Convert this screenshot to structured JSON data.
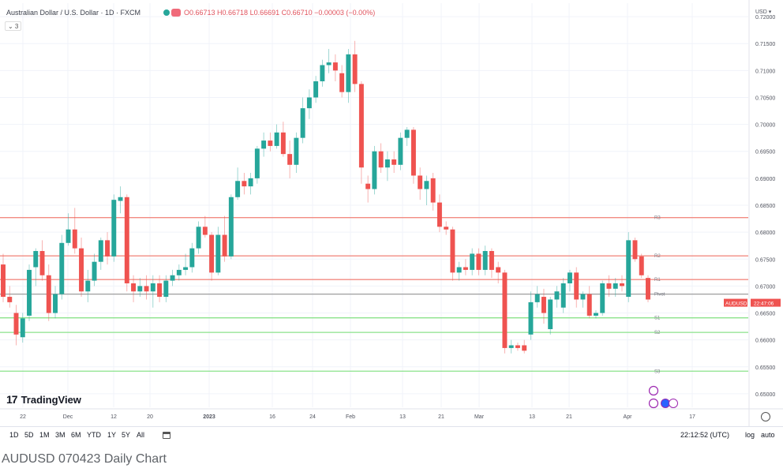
{
  "header": {
    "symbol_title": "Australian Dollar / U.S. Dollar · 1D · FXCM",
    "ohlc_text": "O0.66713  H0.66718  L0.66691  C0.66710  −0.00003 (−0.00%)",
    "indicator_count": "⌄ 3"
  },
  "axis": {
    "currency": "USD ▾",
    "price_labels": [
      "0.72000",
      "0.71500",
      "0.71000",
      "0.70500",
      "0.70000",
      "0.69500",
      "0.69000",
      "0.68500",
      "0.68000",
      "0.67500",
      "0.67000",
      "0.66500",
      "0.66000",
      "0.65500",
      "0.65000"
    ],
    "date_labels": [
      "22",
      "Dec",
      "12",
      "20",
      "2023",
      "16",
      "24",
      "Feb",
      "13",
      "21",
      "Mar",
      "13",
      "21",
      "Apr",
      "17"
    ]
  },
  "price_tag": {
    "symbol": "AUDUSD",
    "time": "22:47:06"
  },
  "pivots": [
    {
      "label": "R3",
      "value": 0.6827,
      "color": "#f28b82"
    },
    {
      "label": "R2",
      "value": 0.6756,
      "color": "#f28b82"
    },
    {
      "label": "R1",
      "value": 0.6712,
      "color": "#f28b82"
    },
    {
      "label": "Pivot",
      "value": 0.6685,
      "color": "#9e9e9e"
    },
    {
      "label": "S1",
      "value": 0.6641,
      "color": "#8be28b"
    },
    {
      "label": "S2",
      "value": 0.6614,
      "color": "#8be28b"
    },
    {
      "label": "S3",
      "value": 0.6542,
      "color": "#8be28b"
    }
  ],
  "branding": {
    "logo_mark": "17",
    "logo_text": "TradingView"
  },
  "toolbar": {
    "timeframes": [
      "1D",
      "5D",
      "1M",
      "3M",
      "6M",
      "YTD",
      "1Y",
      "5Y",
      "All"
    ],
    "time_readout": "22:12:52 (UTC)",
    "log_label": "log",
    "auto_label": "auto"
  },
  "caption": "AUDUSD 070423 Daily Chart",
  "colors": {
    "up": "#26a69a",
    "down": "#ef5350",
    "grid": "#f0f3fa"
  },
  "chart_data": {
    "type": "candlestick",
    "title": "Australian Dollar / U.S. Dollar · 1D · FXCM",
    "ylim": [
      0.6475,
      0.7225
    ],
    "candles": [
      {
        "o": 0.674,
        "h": 0.676,
        "l": 0.667,
        "c": 0.668
      },
      {
        "o": 0.668,
        "h": 0.67,
        "l": 0.666,
        "c": 0.667
      },
      {
        "o": 0.665,
        "h": 0.6665,
        "l": 0.659,
        "c": 0.661
      },
      {
        "o": 0.6605,
        "h": 0.665,
        "l": 0.6595,
        "c": 0.664
      },
      {
        "o": 0.6645,
        "h": 0.674,
        "l": 0.6635,
        "c": 0.673
      },
      {
        "o": 0.6735,
        "h": 0.677,
        "l": 0.67,
        "c": 0.6765
      },
      {
        "o": 0.6765,
        "h": 0.6785,
        "l": 0.671,
        "c": 0.672
      },
      {
        "o": 0.672,
        "h": 0.674,
        "l": 0.6635,
        "c": 0.665
      },
      {
        "o": 0.665,
        "h": 0.67,
        "l": 0.664,
        "c": 0.6685
      },
      {
        "o": 0.6685,
        "h": 0.6795,
        "l": 0.6675,
        "c": 0.678
      },
      {
        "o": 0.678,
        "h": 0.6835,
        "l": 0.6775,
        "c": 0.6805
      },
      {
        "o": 0.6805,
        "h": 0.6845,
        "l": 0.676,
        "c": 0.677
      },
      {
        "o": 0.677,
        "h": 0.679,
        "l": 0.668,
        "c": 0.669
      },
      {
        "o": 0.669,
        "h": 0.673,
        "l": 0.667,
        "c": 0.671
      },
      {
        "o": 0.671,
        "h": 0.676,
        "l": 0.67,
        "c": 0.6745
      },
      {
        "o": 0.6745,
        "h": 0.679,
        "l": 0.673,
        "c": 0.6785
      },
      {
        "o": 0.6785,
        "h": 0.68,
        "l": 0.674,
        "c": 0.6755
      },
      {
        "o": 0.6755,
        "h": 0.687,
        "l": 0.6745,
        "c": 0.686
      },
      {
        "o": 0.6858,
        "h": 0.6885,
        "l": 0.6835,
        "c": 0.6865
      },
      {
        "o": 0.6865,
        "h": 0.687,
        "l": 0.669,
        "c": 0.6705
      },
      {
        "o": 0.6705,
        "h": 0.672,
        "l": 0.667,
        "c": 0.669
      },
      {
        "o": 0.669,
        "h": 0.6715,
        "l": 0.668,
        "c": 0.67
      },
      {
        "o": 0.67,
        "h": 0.672,
        "l": 0.6675,
        "c": 0.669
      },
      {
        "o": 0.669,
        "h": 0.672,
        "l": 0.666,
        "c": 0.6705
      },
      {
        "o": 0.6705,
        "h": 0.672,
        "l": 0.667,
        "c": 0.668
      },
      {
        "o": 0.668,
        "h": 0.672,
        "l": 0.667,
        "c": 0.671
      },
      {
        "o": 0.671,
        "h": 0.673,
        "l": 0.67,
        "c": 0.672
      },
      {
        "o": 0.672,
        "h": 0.674,
        "l": 0.671,
        "c": 0.673
      },
      {
        "o": 0.673,
        "h": 0.676,
        "l": 0.672,
        "c": 0.6735
      },
      {
        "o": 0.6735,
        "h": 0.678,
        "l": 0.6725,
        "c": 0.677
      },
      {
        "o": 0.677,
        "h": 0.682,
        "l": 0.676,
        "c": 0.681
      },
      {
        "o": 0.681,
        "h": 0.683,
        "l": 0.679,
        "c": 0.6795
      },
      {
        "o": 0.6795,
        "h": 0.68,
        "l": 0.671,
        "c": 0.6725
      },
      {
        "o": 0.6725,
        "h": 0.681,
        "l": 0.672,
        "c": 0.6795
      },
      {
        "o": 0.6795,
        "h": 0.683,
        "l": 0.6745,
        "c": 0.6755
      },
      {
        "o": 0.6755,
        "h": 0.687,
        "l": 0.675,
        "c": 0.6865
      },
      {
        "o": 0.6865,
        "h": 0.692,
        "l": 0.686,
        "c": 0.6895
      },
      {
        "o": 0.6895,
        "h": 0.691,
        "l": 0.687,
        "c": 0.6885
      },
      {
        "o": 0.6885,
        "h": 0.691,
        "l": 0.687,
        "c": 0.69
      },
      {
        "o": 0.69,
        "h": 0.696,
        "l": 0.689,
        "c": 0.6955
      },
      {
        "o": 0.6955,
        "h": 0.6985,
        "l": 0.694,
        "c": 0.697
      },
      {
        "o": 0.697,
        "h": 0.6985,
        "l": 0.695,
        "c": 0.696
      },
      {
        "o": 0.696,
        "h": 0.7,
        "l": 0.6955,
        "c": 0.6985
      },
      {
        "o": 0.6985,
        "h": 0.7005,
        "l": 0.694,
        "c": 0.6945
      },
      {
        "o": 0.6945,
        "h": 0.697,
        "l": 0.69,
        "c": 0.6925
      },
      {
        "o": 0.6925,
        "h": 0.6985,
        "l": 0.691,
        "c": 0.6975
      },
      {
        "o": 0.6975,
        "h": 0.705,
        "l": 0.6965,
        "c": 0.703
      },
      {
        "o": 0.703,
        "h": 0.7065,
        "l": 0.701,
        "c": 0.705
      },
      {
        "o": 0.705,
        "h": 0.709,
        "l": 0.704,
        "c": 0.708
      },
      {
        "o": 0.708,
        "h": 0.712,
        "l": 0.707,
        "c": 0.711
      },
      {
        "o": 0.711,
        "h": 0.714,
        "l": 0.7095,
        "c": 0.7115
      },
      {
        "o": 0.7115,
        "h": 0.713,
        "l": 0.708,
        "c": 0.71
      },
      {
        "o": 0.7095,
        "h": 0.711,
        "l": 0.705,
        "c": 0.706
      },
      {
        "o": 0.706,
        "h": 0.714,
        "l": 0.704,
        "c": 0.713
      },
      {
        "o": 0.713,
        "h": 0.7155,
        "l": 0.706,
        "c": 0.7075
      },
      {
        "o": 0.7075,
        "h": 0.708,
        "l": 0.689,
        "c": 0.692
      },
      {
        "o": 0.689,
        "h": 0.6905,
        "l": 0.6855,
        "c": 0.688
      },
      {
        "o": 0.688,
        "h": 0.696,
        "l": 0.687,
        "c": 0.695
      },
      {
        "o": 0.695,
        "h": 0.6965,
        "l": 0.691,
        "c": 0.692
      },
      {
        "o": 0.692,
        "h": 0.695,
        "l": 0.6895,
        "c": 0.6935
      },
      {
        "o": 0.6935,
        "h": 0.695,
        "l": 0.691,
        "c": 0.6925
      },
      {
        "o": 0.6925,
        "h": 0.6985,
        "l": 0.6915,
        "c": 0.6975
      },
      {
        "o": 0.6975,
        "h": 0.6995,
        "l": 0.696,
        "c": 0.699
      },
      {
        "o": 0.699,
        "h": 0.6995,
        "l": 0.689,
        "c": 0.6905
      },
      {
        "o": 0.6905,
        "h": 0.692,
        "l": 0.686,
        "c": 0.688
      },
      {
        "o": 0.688,
        "h": 0.6905,
        "l": 0.685,
        "c": 0.6895
      },
      {
        "o": 0.69,
        "h": 0.691,
        "l": 0.684,
        "c": 0.6855
      },
      {
        "o": 0.6855,
        "h": 0.687,
        "l": 0.68,
        "c": 0.681
      },
      {
        "o": 0.681,
        "h": 0.682,
        "l": 0.6795,
        "c": 0.6805
      },
      {
        "o": 0.6805,
        "h": 0.681,
        "l": 0.671,
        "c": 0.6725
      },
      {
        "o": 0.6725,
        "h": 0.6745,
        "l": 0.671,
        "c": 0.6735
      },
      {
        "o": 0.6735,
        "h": 0.675,
        "l": 0.672,
        "c": 0.673
      },
      {
        "o": 0.673,
        "h": 0.677,
        "l": 0.672,
        "c": 0.676
      },
      {
        "o": 0.676,
        "h": 0.677,
        "l": 0.672,
        "c": 0.673
      },
      {
        "o": 0.673,
        "h": 0.6775,
        "l": 0.672,
        "c": 0.6765
      },
      {
        "o": 0.6765,
        "h": 0.677,
        "l": 0.6715,
        "c": 0.673
      },
      {
        "o": 0.6735,
        "h": 0.6745,
        "l": 0.6705,
        "c": 0.6725
      },
      {
        "o": 0.6725,
        "h": 0.673,
        "l": 0.6575,
        "c": 0.6585
      },
      {
        "o": 0.6585,
        "h": 0.66,
        "l": 0.6575,
        "c": 0.659
      },
      {
        "o": 0.659,
        "h": 0.6595,
        "l": 0.658,
        "c": 0.6585
      },
      {
        "o": 0.659,
        "h": 0.66,
        "l": 0.6575,
        "c": 0.658
      },
      {
        "o": 0.661,
        "h": 0.669,
        "l": 0.66,
        "c": 0.667
      },
      {
        "o": 0.667,
        "h": 0.67,
        "l": 0.666,
        "c": 0.6685
      },
      {
        "o": 0.668,
        "h": 0.6695,
        "l": 0.663,
        "c": 0.665
      },
      {
        "o": 0.662,
        "h": 0.668,
        "l": 0.661,
        "c": 0.6675
      },
      {
        "o": 0.6675,
        "h": 0.67,
        "l": 0.666,
        "c": 0.669
      },
      {
        "o": 0.666,
        "h": 0.6715,
        "l": 0.665,
        "c": 0.6705
      },
      {
        "o": 0.6705,
        "h": 0.673,
        "l": 0.669,
        "c": 0.6725
      },
      {
        "o": 0.6725,
        "h": 0.6735,
        "l": 0.666,
        "c": 0.6675
      },
      {
        "o": 0.6675,
        "h": 0.669,
        "l": 0.666,
        "c": 0.6685
      },
      {
        "o": 0.6685,
        "h": 0.67,
        "l": 0.664,
        "c": 0.6645
      },
      {
        "o": 0.6645,
        "h": 0.6655,
        "l": 0.664,
        "c": 0.665
      },
      {
        "o": 0.665,
        "h": 0.671,
        "l": 0.6645,
        "c": 0.6705
      },
      {
        "o": 0.6705,
        "h": 0.672,
        "l": 0.668,
        "c": 0.6695
      },
      {
        "o": 0.6695,
        "h": 0.6715,
        "l": 0.668,
        "c": 0.6705
      },
      {
        "o": 0.6705,
        "h": 0.672,
        "l": 0.669,
        "c": 0.67
      },
      {
        "o": 0.668,
        "h": 0.68,
        "l": 0.667,
        "c": 0.6785
      },
      {
        "o": 0.6785,
        "h": 0.679,
        "l": 0.6745,
        "c": 0.675
      },
      {
        "o": 0.6755,
        "h": 0.676,
        "l": 0.6715,
        "c": 0.672
      },
      {
        "o": 0.6715,
        "h": 0.672,
        "l": 0.667,
        "c": 0.6675
      }
    ]
  }
}
